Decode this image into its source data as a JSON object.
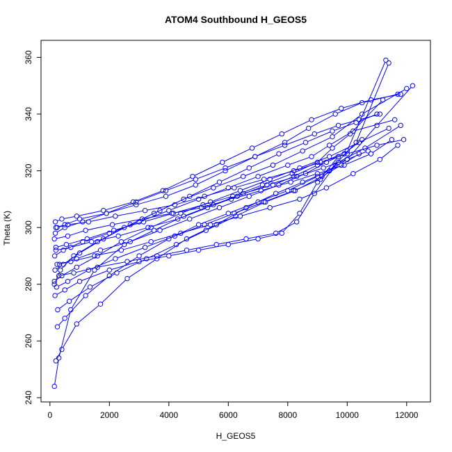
{
  "chart_data": {
    "type": "scatter",
    "title": "ATOM4 Southbound H_GEOS5",
    "xlabel": "H_GEOS5",
    "ylabel": "Theta (K)",
    "xlim": [
      -300,
      12800
    ],
    "ylim": [
      238.5,
      366
    ],
    "x_ticks": [
      0,
      2000,
      4000,
      6000,
      8000,
      10000,
      12000
    ],
    "y_ticks": [
      240,
      260,
      280,
      300,
      320,
      340,
      360
    ],
    "x_tick_labels": [
      "0",
      "2000",
      "4000",
      "6000",
      "8000",
      "10000",
      "12000"
    ],
    "y_tick_labels": [
      "240",
      "260",
      "280",
      "300",
      "320",
      "340",
      "360"
    ],
    "grid": false,
    "legend": "none",
    "marker": "open-circle",
    "connect_points": true,
    "color": "#0000ff",
    "series": [
      {
        "x": [
          150,
          300,
          700,
          1500,
          2500,
          3500,
          4500,
          5500,
          6500,
          7500,
          8200,
          9000,
          10000,
          11300
        ],
        "y": [
          244,
          254,
          271,
          285,
          294,
          299,
          304,
          308,
          312,
          315,
          318,
          322,
          327,
          359
        ]
      },
      {
        "x": [
          200,
          400,
          900,
          1700,
          2600,
          3600,
          4600,
          5600,
          6600,
          7600,
          8500,
          9400,
          10300,
          11400
        ],
        "y": [
          253,
          257,
          266,
          273,
          282,
          289,
          296,
          301,
          307,
          312,
          316,
          320,
          330,
          358
        ]
      },
      {
        "x": [
          250,
          500,
          1200,
          2000,
          3000,
          4000,
          5000,
          6000,
          7000,
          8000,
          9000,
          10000,
          11000,
          12200
        ],
        "y": [
          265,
          268,
          276,
          283,
          290,
          296,
          301,
          305,
          309,
          313,
          318,
          324,
          336,
          350
        ]
      },
      {
        "x": [
          150,
          350,
          800,
          1600,
          2500,
          3500,
          4500,
          5500,
          6500,
          7500,
          8500,
          9500,
          10500,
          12000
        ],
        "y": [
          280,
          285,
          290,
          295,
          300,
          305,
          310,
          314,
          318,
          322,
          327,
          332,
          340,
          349
        ]
      },
      {
        "x": [
          180,
          400,
          900,
          1800,
          2800,
          3800,
          4800,
          5800,
          6800,
          7800,
          8800,
          9800,
          10800,
          11800
        ],
        "y": [
          302,
          303,
          304,
          306,
          309,
          313,
          318,
          323,
          328,
          333,
          338,
          342,
          345,
          347
        ]
      },
      {
        "x": [
          200,
          500,
          1000,
          1900,
          2900,
          3900,
          4900,
          5900,
          6900,
          7900,
          8700,
          9600,
          10500,
          11700
        ],
        "y": [
          300,
          301,
          303,
          305,
          308,
          311,
          315,
          320,
          325,
          330,
          335,
          340,
          344,
          347
        ]
      },
      {
        "x": [
          160,
          450,
          1100,
          2000,
          3000,
          4000,
          5000,
          6000,
          7000,
          8000,
          8800,
          9400,
          10200,
          11600
        ],
        "y": [
          290,
          292,
          295,
          298,
          302,
          306,
          310,
          314,
          318,
          322,
          325,
          329,
          334,
          338
        ]
      },
      {
        "x": [
          220,
          600,
          1300,
          2200,
          3200,
          4200,
          5200,
          6200,
          7200,
          8200,
          9100,
          9700,
          10600,
          11800
        ],
        "y": [
          279,
          281,
          285,
          289,
          293,
          297,
          301,
          305,
          309,
          313,
          317,
          323,
          328,
          336
        ]
      },
      {
        "x": [
          170,
          500,
          1000,
          2000,
          3000,
          4000,
          5000,
          6000,
          7000,
          7800,
          8400,
          9000,
          9700
        ],
        "y": [
          276,
          278,
          281,
          285,
          288,
          290,
          292,
          294,
          296,
          298,
          305,
          316,
          325
        ]
      },
      {
        "x": [
          240,
          700,
          1500,
          2400,
          3400,
          4400,
          5400,
          6400,
          7400,
          8400,
          9300,
          10200,
          11100,
          11700
        ],
        "y": [
          287,
          288,
          290,
          292,
          295,
          298,
          301,
          304,
          307,
          310,
          314,
          319,
          324,
          329
        ]
      },
      {
        "x": [
          300,
          800,
          1600,
          2600,
          3600,
          4600,
          5600,
          6600,
          7600,
          8300,
          8900,
          9600
        ],
        "y": [
          283,
          284,
          286,
          288,
          290,
          292,
          294,
          296,
          298,
          302,
          312,
          322
        ]
      },
      {
        "x": [
          150,
          600,
          1200,
          2100,
          3100,
          4100,
          5100,
          6100,
          7100,
          8100,
          9000,
          9900,
          10800,
          11500
        ],
        "y": [
          296,
          297,
          299,
          301,
          303,
          305,
          307,
          310,
          313,
          316,
          319,
          322,
          326,
          331
        ]
      },
      {
        "x": [
          200,
          700,
          1400,
          2300,
          3300,
          4300,
          5300,
          6300,
          7300,
          8300,
          9200,
          10000,
          10700
        ],
        "y": [
          292,
          293,
          295,
          297,
          300,
          303,
          307,
          311,
          315,
          318,
          321,
          324,
          327
        ]
      },
      {
        "x": [
          260,
          650,
          1350,
          2250,
          3250,
          4250,
          5250,
          6250,
          7250,
          8250,
          9150,
          9800,
          10400
        ],
        "y": [
          271,
          274,
          279,
          284,
          289,
          294,
          299,
          304,
          309,
          313,
          318,
          322,
          326
        ]
      },
      {
        "x": [
          180,
          500,
          1100,
          1900,
          2900,
          3900,
          4900,
          5900,
          6900,
          7900,
          8900,
          9700,
          10400,
          11100
        ],
        "y": [
          298,
          300,
          302,
          305,
          309,
          313,
          317,
          321,
          325,
          329,
          333,
          336,
          338,
          340
        ]
      },
      {
        "x": [
          320,
          900,
          1700,
          2700,
          3700,
          4700,
          5700,
          6700,
          7700,
          8600,
          9300,
          9900,
          10500
        ],
        "y": [
          287,
          289,
          292,
          295,
          299,
          303,
          307,
          311,
          315,
          319,
          323,
          326,
          331
        ]
      },
      {
        "x": [
          150,
          400,
          900,
          1600,
          2400,
          3400,
          4400,
          5400,
          6400,
          7400,
          8400,
          9400,
          10400,
          11400
        ],
        "y": [
          281,
          283,
          286,
          290,
          295,
          300,
          305,
          309,
          313,
          317,
          321,
          325,
          330,
          335
        ]
      },
      {
        "x": [
          200,
          550,
          1250,
          2150,
          3150,
          4150,
          5150,
          6150,
          7150,
          8150,
          9000,
          9500,
          10100,
          11200
        ],
        "y": [
          293,
          294,
          296,
          299,
          302,
          305,
          308,
          311,
          315,
          319,
          323,
          328,
          333,
          345
        ]
      },
      {
        "x": [
          240,
          600,
          1300,
          2200,
          3200,
          4200,
          5200,
          6200,
          7200,
          8200,
          9100,
          10000,
          11000,
          11900
        ],
        "y": [
          300,
          301,
          302,
          304,
          306,
          308,
          311,
          314,
          317,
          320,
          323,
          326,
          329,
          331
        ]
      },
      {
        "x": [
          170,
          450,
          1000,
          1800,
          2700,
          3700,
          4700,
          5700,
          6700,
          7700,
          8600,
          9500,
          10300,
          11000
        ],
        "y": [
          285,
          287,
          291,
          296,
          301,
          306,
          311,
          316,
          321,
          326,
          330,
          334,
          337,
          340
        ]
      }
    ]
  }
}
